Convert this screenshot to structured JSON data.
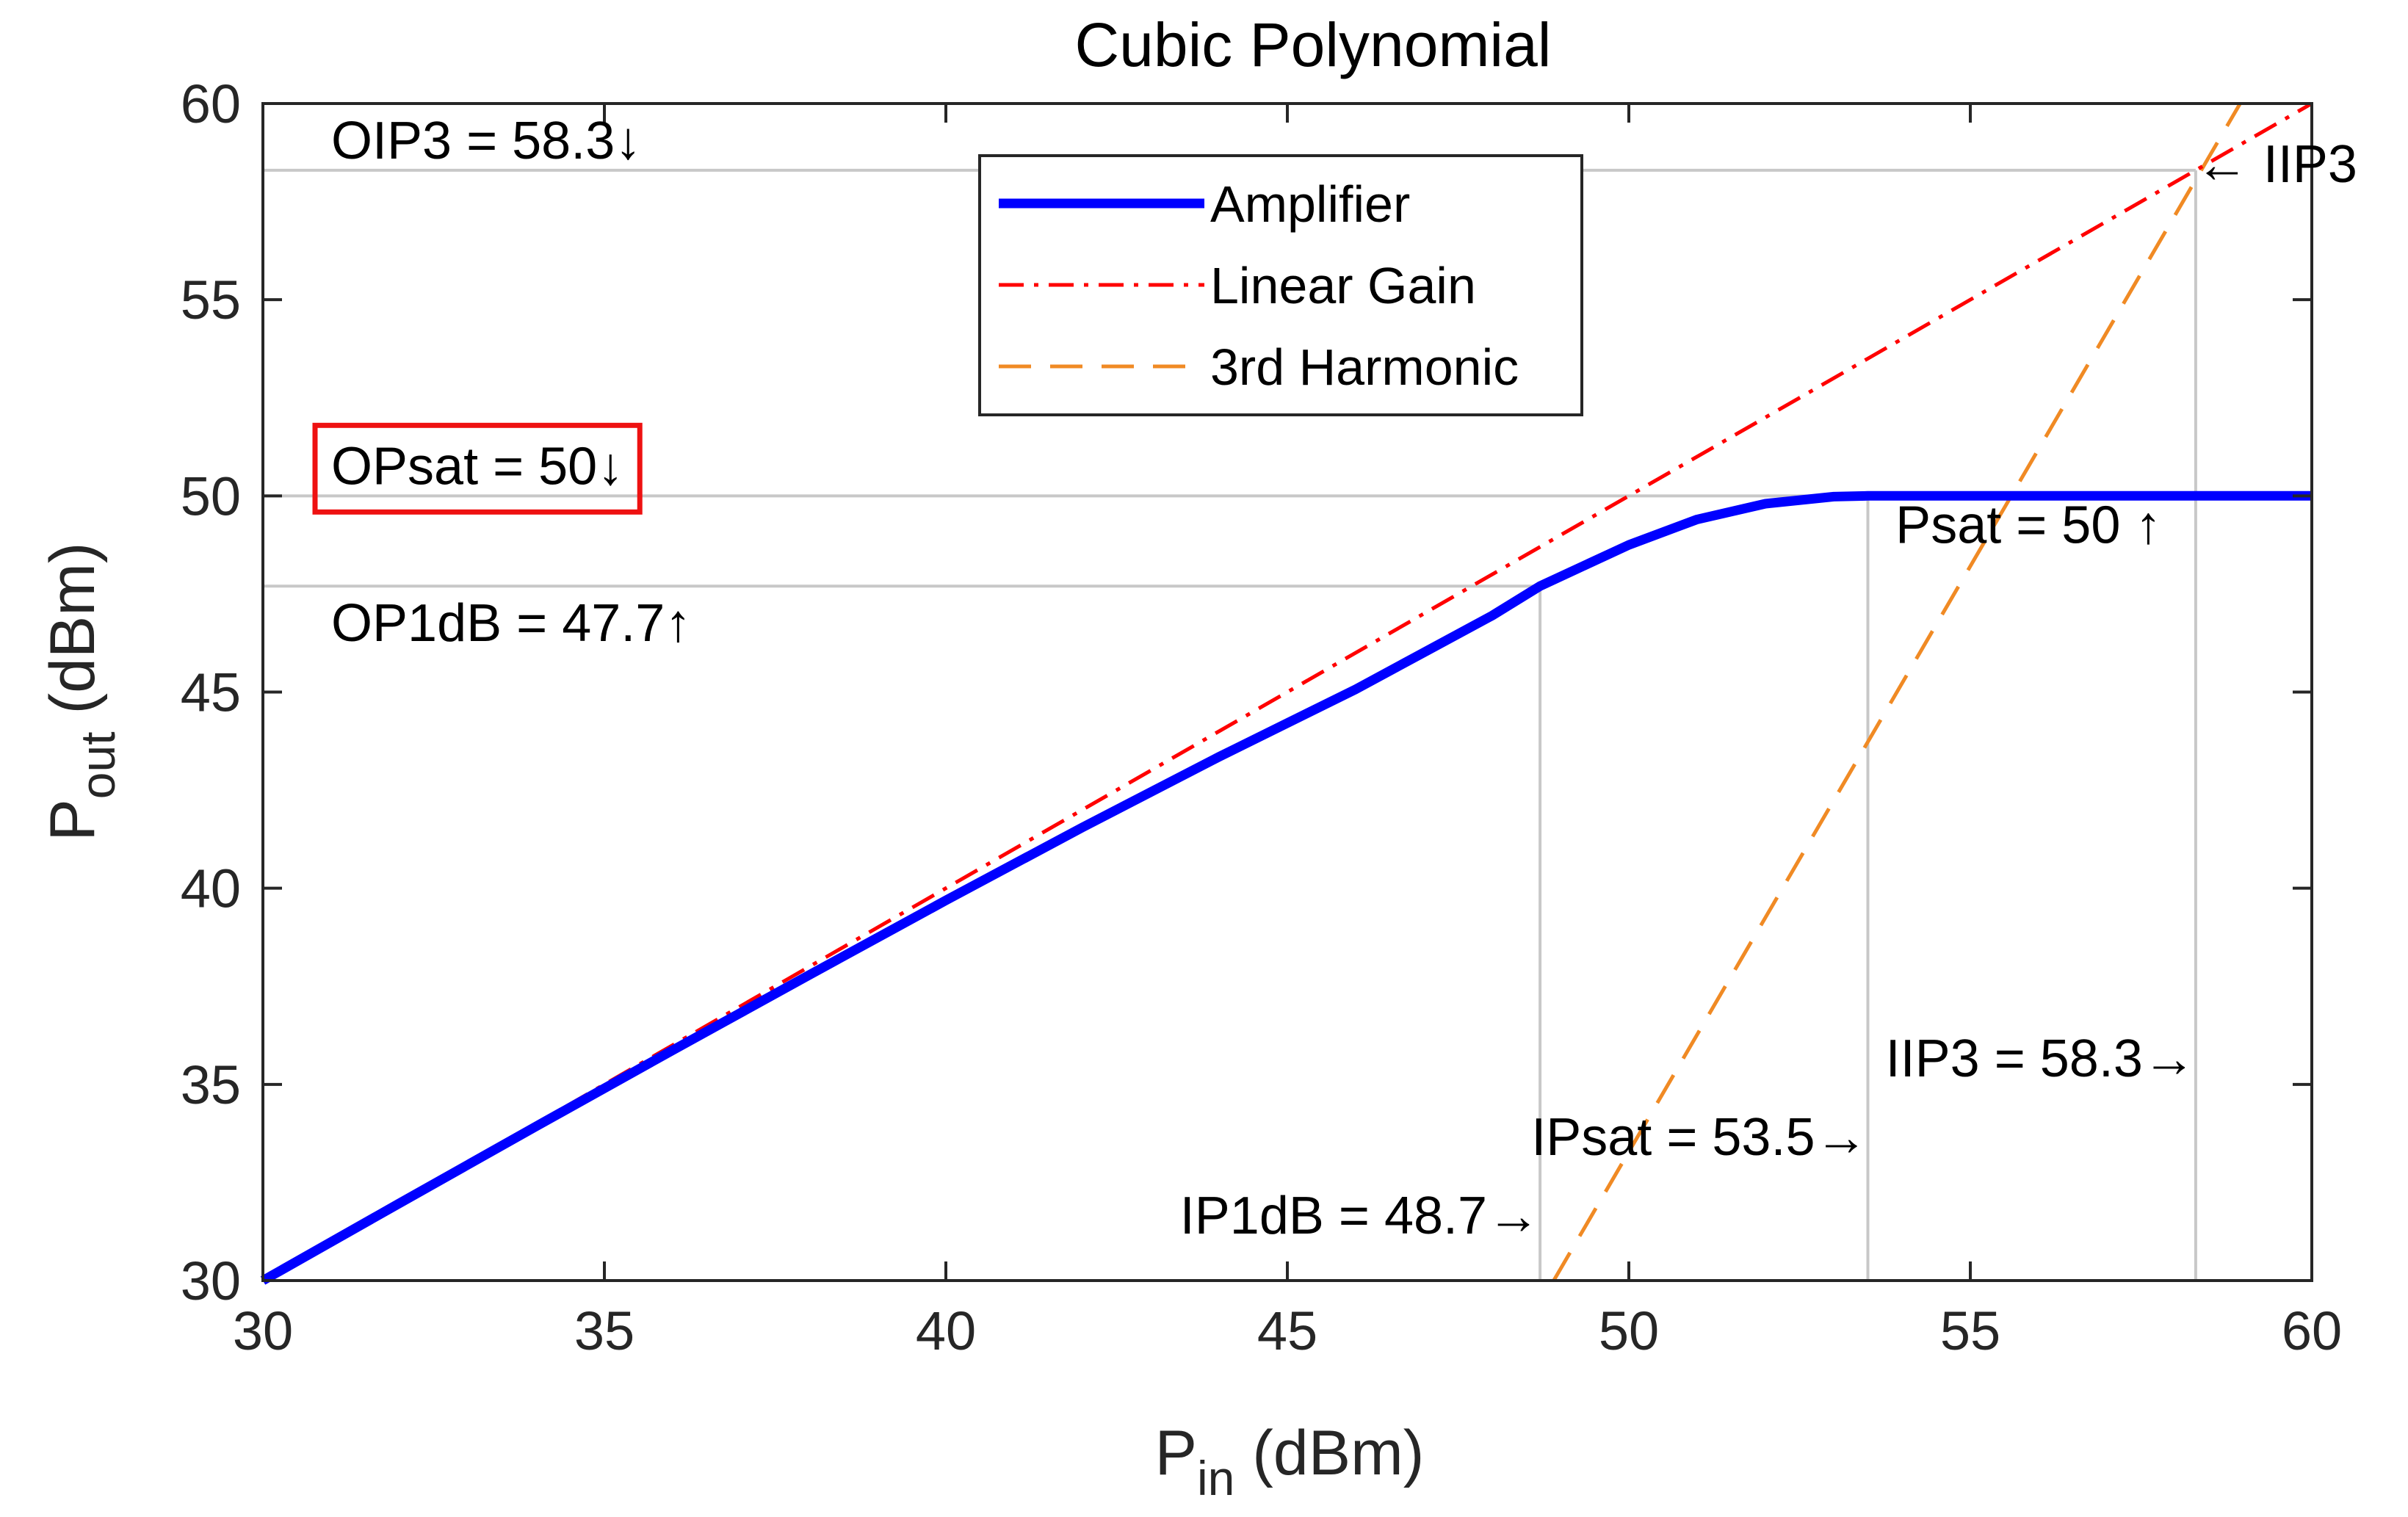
{
  "chart_data": {
    "type": "line",
    "title": "Cubic Polynomial",
    "xlabel": {
      "main": "P",
      "sub": "in",
      "unit": " (dBm)"
    },
    "ylabel": {
      "main": "P",
      "sub": "out",
      "unit": " (dBm)"
    },
    "xlim": [
      30,
      60
    ],
    "ylim": [
      30,
      60
    ],
    "xticks": [
      30,
      35,
      40,
      45,
      50,
      55,
      60
    ],
    "yticks": [
      30,
      35,
      40,
      45,
      50,
      55,
      60
    ],
    "grid": false,
    "legend_position": "top-center",
    "series": [
      {
        "name": "Amplifier",
        "style": "solid",
        "color": "#0000ff",
        "x": [
          30,
          32,
          34,
          36,
          38,
          40,
          42,
          44,
          46,
          48,
          48.7,
          50,
          51,
          52,
          53,
          53.5,
          54,
          56,
          58,
          60
        ],
        "y": [
          30,
          31.97,
          33.93,
          35.87,
          37.79,
          39.69,
          41.55,
          43.35,
          45.07,
          46.95,
          47.7,
          48.75,
          49.4,
          49.8,
          49.98,
          50,
          50,
          50,
          50,
          50
        ]
      },
      {
        "name": "Linear Gain",
        "style": "dashdot",
        "color": "#ff0000",
        "x": [
          30,
          60
        ],
        "y": [
          30,
          60
        ]
      },
      {
        "name": "3rd Harmonic",
        "style": "dashed",
        "color": "#f08a24",
        "x": [
          48.9,
          58.95
        ],
        "y": [
          30,
          60.2
        ]
      }
    ],
    "reference_lines": [
      {
        "kind": "horizontal",
        "y": 58.3,
        "x_from": 30,
        "x_to": 58.3
      },
      {
        "kind": "horizontal",
        "y": 50,
        "x_from": 30,
        "x_to": 53.5
      },
      {
        "kind": "horizontal",
        "y": 47.7,
        "x_from": 30,
        "x_to": 48.7
      },
      {
        "kind": "vertical",
        "x": 48.7,
        "y_from": 30,
        "y_to": 47.7
      },
      {
        "kind": "vertical",
        "x": 53.5,
        "y_from": 30,
        "y_to": 50
      },
      {
        "kind": "vertical",
        "x": 58.3,
        "y_from": 30,
        "y_to": 58.3
      }
    ],
    "annotations": [
      {
        "id": "oip3",
        "text": "OIP3 = 58.3↓",
        "x": 31,
        "y": 58.6,
        "anchor": "start"
      },
      {
        "id": "opsat",
        "text": "OPsat = 50↓",
        "x": 31,
        "y": 50.3,
        "anchor": "start",
        "boxed": true,
        "box_color": "#ee1111"
      },
      {
        "id": "op1db",
        "text": "OP1dB = 47.7↑",
        "x": 31,
        "y": 46.3,
        "anchor": "start"
      },
      {
        "id": "psat",
        "text": "Psat = 50 ↑",
        "x": 57.8,
        "y": 48.8,
        "anchor": "end"
      },
      {
        "id": "iip3-marker",
        "text": "← IIP3",
        "x": 58.3,
        "y": 58.0,
        "anchor": "start"
      },
      {
        "id": "iip3",
        "text": "IIP3 = 58.3→",
        "x": 58.3,
        "y": 35.2,
        "anchor": "end"
      },
      {
        "id": "ipsat",
        "text": "IPsat = 53.5→",
        "x": 53.5,
        "y": 33.2,
        "anchor": "end"
      },
      {
        "id": "ip1db",
        "text": "IP1dB = 48.7→",
        "x": 48.7,
        "y": 31.2,
        "anchor": "end"
      }
    ]
  }
}
